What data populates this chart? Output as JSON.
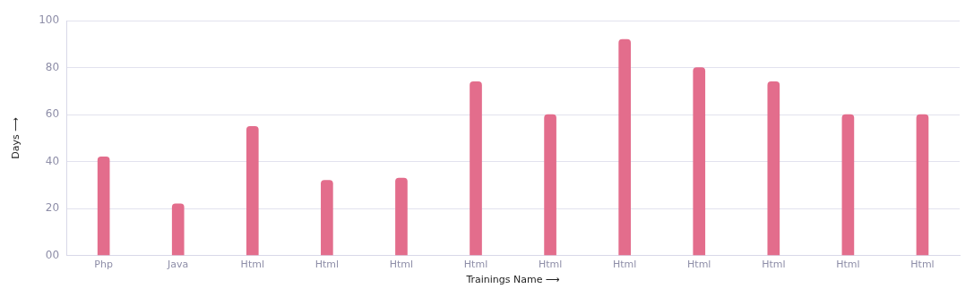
{
  "chart_data": {
    "type": "bar",
    "xlabel": "Trainings Name ⟶",
    "ylabel": "Days ⟶",
    "categories": [
      "Php",
      "Java",
      "Html",
      "Html",
      "Html",
      "Html",
      "Html",
      "Html",
      "Html",
      "Html",
      "Html",
      "Html"
    ],
    "values": [
      42,
      22,
      55,
      32,
      33,
      74,
      60,
      92,
      80,
      74,
      60,
      60
    ],
    "color": "#e36d8c",
    "ylim": [
      0,
      100
    ],
    "yticks": [
      {
        "value": 0,
        "label": "00"
      },
      20,
      40,
      60,
      80,
      100
    ],
    "grid": "y"
  }
}
